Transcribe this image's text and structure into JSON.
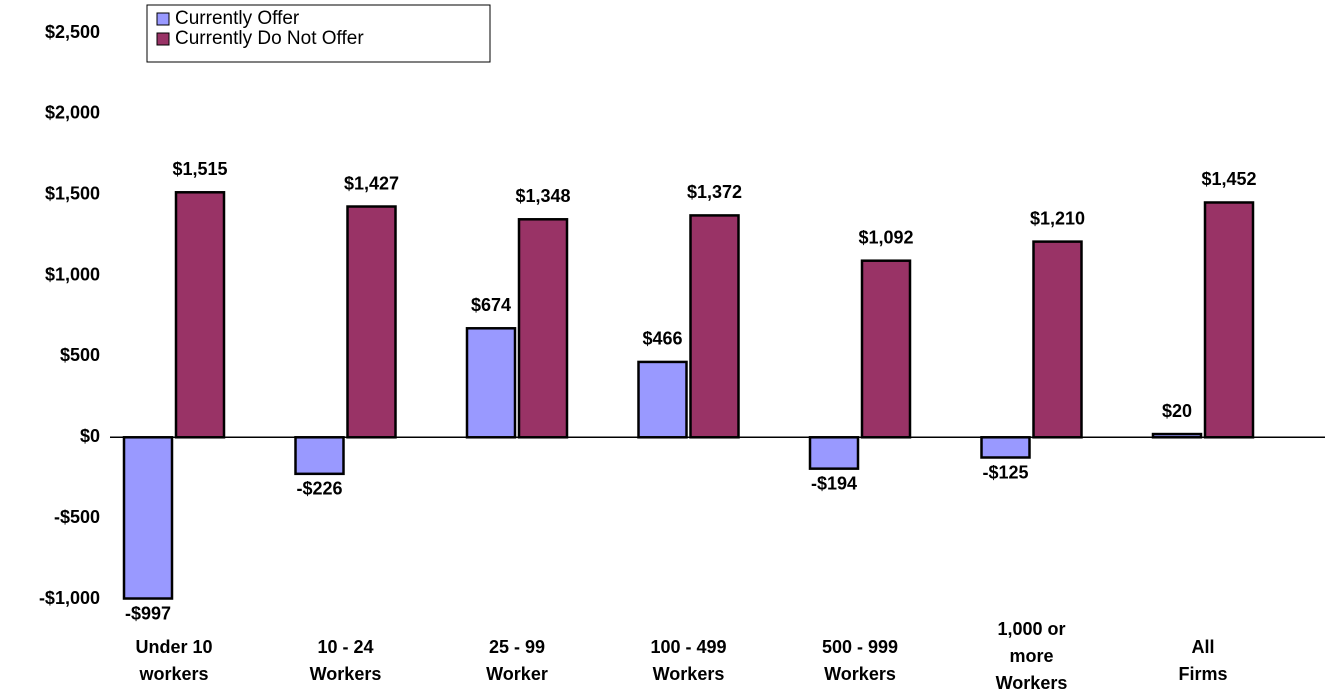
{
  "chart_data": {
    "type": "bar",
    "categories": [
      [
        "Under 10",
        "workers"
      ],
      [
        "10 - 24",
        "Workers"
      ],
      [
        "25 - 99",
        "Worker"
      ],
      [
        "100 - 499",
        "Workers"
      ],
      [
        "500 - 999",
        "Workers"
      ],
      [
        "1,000 or",
        "more",
        "Workers"
      ],
      [
        "All",
        "Firms"
      ]
    ],
    "series": [
      {
        "name": "Currently Offer",
        "color": "#9999ff",
        "values": [
          -997,
          -226,
          674,
          466,
          -194,
          -125,
          20
        ],
        "value_labels": [
          "-$997",
          "-$226",
          "$674",
          "$466",
          "-$194",
          "-$125",
          "$20"
        ]
      },
      {
        "name": "Currently Do Not Offer",
        "color": "#993366",
        "values": [
          1515,
          1427,
          1348,
          1372,
          1092,
          1210,
          1452
        ],
        "value_labels": [
          "$1,515",
          "$1,427",
          "$1,348",
          "$1,372",
          "$1,092",
          "$1,210",
          "$1,452"
        ]
      }
    ],
    "ylim": [
      -1000,
      2500
    ],
    "yticks": [
      {
        "value": -1000,
        "label": "-$1,000"
      },
      {
        "value": -500,
        "label": "-$500"
      },
      {
        "value": 0,
        "label": "$0"
      },
      {
        "value": 500,
        "label": "$500"
      },
      {
        "value": 1000,
        "label": "$1,000"
      },
      {
        "value": 1500,
        "label": "$1,500"
      },
      {
        "value": 2000,
        "label": "$2,000"
      },
      {
        "value": 2500,
        "label": "$2,500"
      }
    ],
    "legend": "top-left"
  }
}
